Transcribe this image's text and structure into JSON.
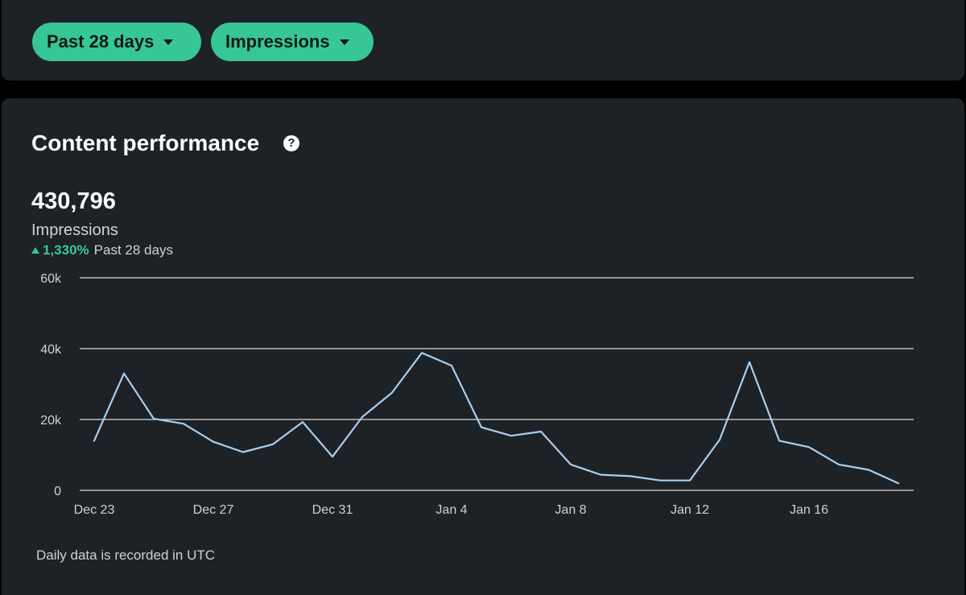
{
  "filters": {
    "range": {
      "label": "Past 28 days"
    },
    "metric": {
      "label": "Impressions"
    }
  },
  "card": {
    "title": "Content performance",
    "help_icon": "question-circle-icon",
    "total": "430,796",
    "metric_label": "Impressions",
    "change": "1,330%",
    "change_period": "Past 28 days",
    "footnote": "Daily data is recorded in UTC"
  },
  "colors": {
    "accent": "#37c796",
    "line": "#a8cff0",
    "background": "#1d2226",
    "grid": "#d9d9d9"
  },
  "chart_data": {
    "type": "line",
    "title": "",
    "xlabel": "",
    "ylabel": "",
    "ylim": [
      0,
      60000
    ],
    "yticks": [
      0,
      20000,
      40000,
      60000
    ],
    "ytick_labels": [
      "0",
      "20k",
      "40k",
      "60k"
    ],
    "grid": true,
    "xtick_labels": [
      "Dec 23",
      "Dec 27",
      "Dec 31",
      "Jan 4",
      "Jan 8",
      "Jan 12",
      "Jan 16"
    ],
    "xtick_index": [
      0,
      4,
      8,
      12,
      16,
      20,
      24
    ],
    "x": [
      "Dec 23",
      "Dec 24",
      "Dec 25",
      "Dec 26",
      "Dec 27",
      "Dec 28",
      "Dec 29",
      "Dec 30",
      "Dec 31",
      "Jan 1",
      "Jan 2",
      "Jan 3",
      "Jan 4",
      "Jan 5",
      "Jan 6",
      "Jan 7",
      "Jan 8",
      "Jan 9",
      "Jan 10",
      "Jan 11",
      "Jan 12",
      "Jan 13",
      "Jan 14",
      "Jan 15",
      "Jan 16",
      "Jan 17",
      "Jan 18",
      "Jan 19"
    ],
    "series": [
      {
        "name": "",
        "values": [
          14000,
          33000,
          20200,
          18800,
          13700,
          10800,
          13000,
          19300,
          9500,
          20700,
          27600,
          38800,
          35200,
          17800,
          15400,
          16600,
          7300,
          4400,
          4000,
          2800,
          2800,
          14300,
          36200,
          14000,
          12200,
          7300,
          5800,
          2000
        ]
      }
    ]
  }
}
